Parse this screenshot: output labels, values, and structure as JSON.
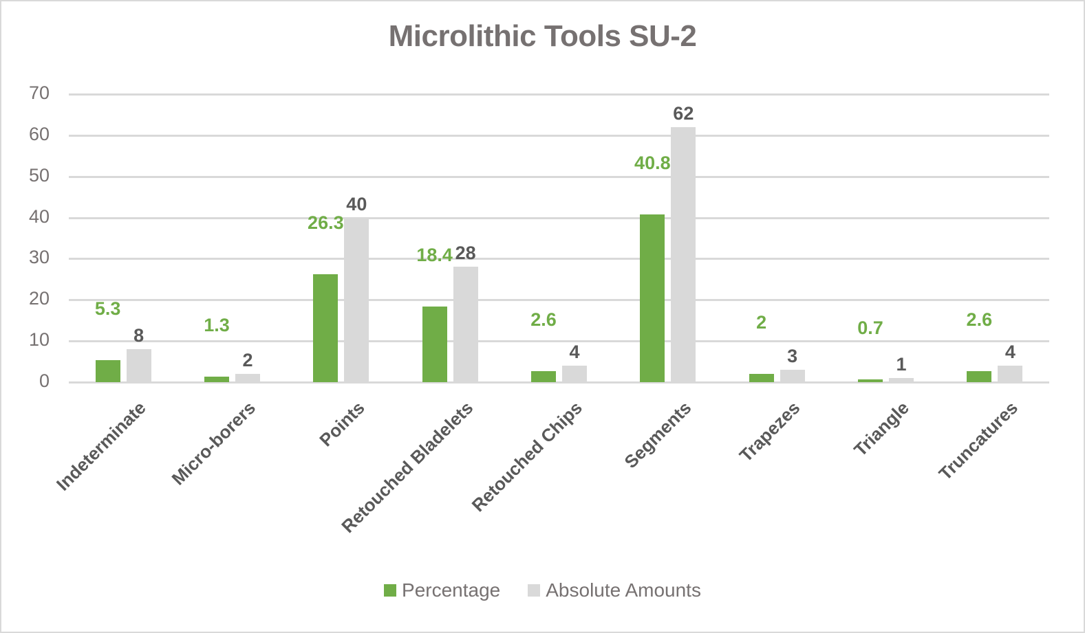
{
  "chart_data": {
    "type": "bar",
    "title": "Microlithic Tools SU-2",
    "xlabel": "",
    "ylabel": "",
    "ylim": [
      0,
      70
    ],
    "yticks": [
      0,
      10,
      20,
      30,
      40,
      50,
      60,
      70
    ],
    "grid": true,
    "legend_position": "bottom",
    "categories": [
      "Indeterminate",
      "Micro-borers",
      "Points",
      "Retouched Bladelets",
      "Retouched Chips",
      "Segments",
      "Trapezes",
      "Triangle",
      "Truncatures"
    ],
    "series": [
      {
        "name": "Percentage",
        "color": "#70ad47",
        "label_color": "#70ad47",
        "values": [
          5.3,
          1.3,
          26.3,
          18.4,
          2.6,
          40.8,
          2,
          0.7,
          2.6
        ]
      },
      {
        "name": "Absolute Amounts",
        "color": "#d9d9d9",
        "label_color": "#595959",
        "values": [
          8,
          2,
          40,
          28,
          4,
          62,
          3,
          1,
          4
        ]
      }
    ],
    "data_labels": true
  },
  "legend": {
    "items": [
      {
        "label": "Percentage",
        "color": "#70ad47"
      },
      {
        "label": "Absolute Amounts",
        "color": "#d9d9d9"
      }
    ]
  }
}
